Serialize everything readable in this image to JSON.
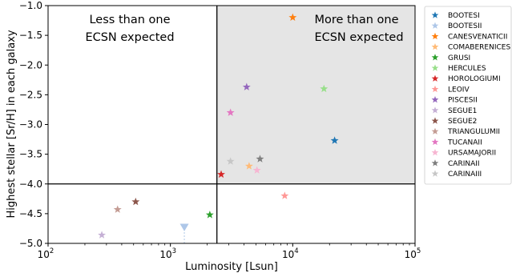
{
  "chart_data": {
    "type": "scatter",
    "title": "",
    "xlabel": "Luminosity [Lsun]",
    "ylabel": "Highest stellar [Sr/H] in each galaxy",
    "xscale": "log",
    "xlim": [
      100,
      100000
    ],
    "ylim": [
      -5.0,
      -1.0
    ],
    "x_ticks": [
      {
        "value": 100,
        "base": "10",
        "exp": "2"
      },
      {
        "value": 1000,
        "base": "10",
        "exp": "3"
      },
      {
        "value": 10000,
        "base": "10",
        "exp": "4"
      },
      {
        "value": 100000,
        "base": "10",
        "exp": "5"
      }
    ],
    "y_ticks": [
      {
        "value": -1.0,
        "label": "−1.0"
      },
      {
        "value": -1.5,
        "label": "−1.5"
      },
      {
        "value": -2.0,
        "label": "−2.0"
      },
      {
        "value": -2.5,
        "label": "−2.5"
      },
      {
        "value": -3.0,
        "label": "−3.0"
      },
      {
        "value": -3.5,
        "label": "−3.5"
      },
      {
        "value": -4.0,
        "label": "−4.0"
      },
      {
        "value": -4.5,
        "label": "−4.5"
      },
      {
        "value": -5.0,
        "label": "−5.0"
      }
    ],
    "reference_lines": {
      "x": 2400,
      "y": -4.0
    },
    "shaded_region": {
      "x": [
        2400,
        100000
      ],
      "y": [
        -4.0,
        -1.0
      ],
      "color": "#e5e5e5"
    },
    "annotations": {
      "left_line1": "Less than one",
      "left_line2": "ECSN expected",
      "right_line1": "More than one",
      "right_line2": "ECSN expected"
    },
    "legend_position": "outside-right",
    "series": [
      {
        "name": "BOOTESI",
        "color": "#1f77b4",
        "marker": "star",
        "points": [
          [
            22000,
            -3.27
          ]
        ]
      },
      {
        "name": "BOOTESII",
        "color": "#aec7e8",
        "marker": "triangle-down",
        "upper_limit": true,
        "points": [
          [
            1300,
            -4.73
          ]
        ]
      },
      {
        "name": "CANESVENATICII",
        "color": "#ff7f0e",
        "marker": "star",
        "points": [
          [
            10000,
            -1.2
          ]
        ]
      },
      {
        "name": "COMABERENICES",
        "color": "#ffbb78",
        "marker": "star",
        "points": [
          [
            4400,
            -3.7
          ]
        ]
      },
      {
        "name": "GRUSI",
        "color": "#2ca02c",
        "marker": "star",
        "points": [
          [
            2100,
            -4.52
          ]
        ]
      },
      {
        "name": "HERCULES",
        "color": "#98df8a",
        "marker": "star",
        "points": [
          [
            18000,
            -2.4
          ]
        ]
      },
      {
        "name": "HOROLOGIUMI",
        "color": "#d62728",
        "marker": "star",
        "points": [
          [
            2600,
            -3.84
          ]
        ]
      },
      {
        "name": "LEOIV",
        "color": "#ff9896",
        "marker": "star",
        "points": [
          [
            8600,
            -4.2
          ]
        ]
      },
      {
        "name": "PISCESII",
        "color": "#9467bd",
        "marker": "star",
        "points": [
          [
            4200,
            -2.37
          ]
        ]
      },
      {
        "name": "SEGUE1",
        "color": "#c5b0d5",
        "marker": "star",
        "points": [
          [
            275,
            -4.86
          ]
        ]
      },
      {
        "name": "SEGUE2",
        "color": "#8c564b",
        "marker": "star",
        "points": [
          [
            520,
            -4.3
          ]
        ]
      },
      {
        "name": "TRIANGULUMII",
        "color": "#c49c94",
        "marker": "star",
        "points": [
          [
            370,
            -4.43
          ]
        ]
      },
      {
        "name": "TUCANAII",
        "color": "#e377c2",
        "marker": "star",
        "points": [
          [
            3100,
            -2.8
          ]
        ]
      },
      {
        "name": "URSAMAJORII",
        "color": "#f7b6d2",
        "marker": "star",
        "points": [
          [
            5100,
            -3.77
          ]
        ]
      },
      {
        "name": "CARINAII",
        "color": "#7f7f7f",
        "marker": "star",
        "points": [
          [
            5400,
            -3.58
          ]
        ]
      },
      {
        "name": "CARINAIII",
        "color": "#c7c7c7",
        "marker": "star",
        "points": [
          [
            3100,
            -3.62
          ]
        ]
      }
    ]
  }
}
